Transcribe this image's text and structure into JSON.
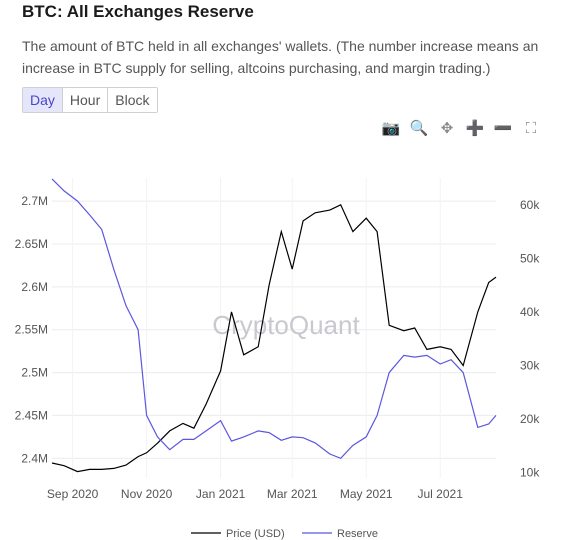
{
  "header": {
    "title": "BTC: All Exchanges Reserve",
    "subtitle": "The amount of BTC held in all exchanges' wallets. (The number increase means an increase in BTC supply for selling, altcoins purchasing, and margin trading.)"
  },
  "granularity": {
    "options": [
      "Day",
      "Hour",
      "Block"
    ],
    "selected": "Day"
  },
  "toolbar": [
    {
      "name": "camera-icon",
      "glyph": "📷"
    },
    {
      "name": "zoom-icon",
      "glyph": "🔍"
    },
    {
      "name": "pan-icon",
      "glyph": "✥"
    },
    {
      "name": "zoom-in-icon",
      "glyph": "➕"
    },
    {
      "name": "zoom-out-icon",
      "glyph": "➖"
    },
    {
      "name": "autoscale-icon",
      "glyph": "⛶"
    }
  ],
  "watermark": "CryptoQuant",
  "colors": {
    "price": "#000000",
    "reserve": "#5b57e0"
  },
  "chart_data": {
    "type": "line",
    "title": "",
    "x_ticks": [
      "Sep 2020",
      "Nov 2020",
      "Jan 2021",
      "Mar 2021",
      "May 2021",
      "Jul 2021"
    ],
    "x": [
      "2020-08-15",
      "2020-08-25",
      "2020-09-05",
      "2020-09-15",
      "2020-09-25",
      "2020-10-05",
      "2020-10-15",
      "2020-10-25",
      "2020-11-01",
      "2020-11-10",
      "2020-11-20",
      "2020-12-01",
      "2020-12-10",
      "2020-12-20",
      "2021-01-01",
      "2021-01-10",
      "2021-01-20",
      "2021-02-01",
      "2021-02-10",
      "2021-02-20",
      "2021-03-01",
      "2021-03-10",
      "2021-03-20",
      "2021-04-01",
      "2021-04-10",
      "2021-04-20",
      "2021-05-01",
      "2021-05-10",
      "2021-05-20",
      "2021-06-01",
      "2021-06-10",
      "2021-06-20",
      "2021-07-01",
      "2021-07-10",
      "2021-07-20",
      "2021-08-01",
      "2021-08-10",
      "2021-08-16"
    ],
    "y_left": {
      "label": "",
      "ticks": [
        "2.4M",
        "2.45M",
        "2.5M",
        "2.55M",
        "2.6M",
        "2.65M",
        "2.7M"
      ],
      "range": [
        2.377,
        2.727
      ]
    },
    "y_right": {
      "label": "",
      "ticks": [
        "10k",
        "20k",
        "30k",
        "40k",
        "50k",
        "60k"
      ],
      "range": [
        9000,
        65000
      ]
    },
    "series": [
      {
        "name": "Price (USD)",
        "axis": "right",
        "values": [
          11800,
          11300,
          10200,
          10600,
          10600,
          10800,
          11400,
          13000,
          13700,
          15500,
          17800,
          19200,
          18300,
          22800,
          29000,
          40000,
          32000,
          33500,
          45000,
          55000,
          48000,
          57000,
          58500,
          59000,
          60000,
          55000,
          57500,
          55000,
          37500,
          36500,
          37000,
          33000,
          33500,
          33000,
          30000,
          40000,
          45500,
          46500
        ]
      },
      {
        "name": "Reserve",
        "axis": "left",
        "values": [
          2.726,
          2.712,
          2.7,
          2.684,
          2.667,
          2.62,
          2.578,
          2.55,
          2.45,
          2.425,
          2.41,
          2.422,
          2.422,
          2.432,
          2.444,
          2.42,
          2.425,
          2.432,
          2.43,
          2.421,
          2.425,
          2.424,
          2.418,
          2.405,
          2.4,
          2.415,
          2.425,
          2.45,
          2.5,
          2.52,
          2.518,
          2.52,
          2.51,
          2.515,
          2.5,
          2.436,
          2.44,
          2.45
        ]
      }
    ],
    "legend": "bottom-center",
    "grid": true
  }
}
